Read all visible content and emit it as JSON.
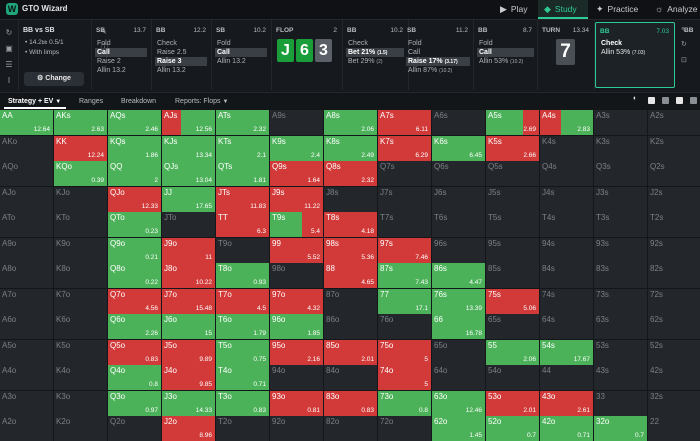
{
  "app": {
    "logo": "W",
    "name": "GTO Wizard",
    "caret": "⌄"
  },
  "nav": [
    {
      "label": "Play",
      "icon": "play-icon",
      "glyph": "▶"
    },
    {
      "label": "Study",
      "icon": "study-icon",
      "glyph": "◆",
      "active": true
    },
    {
      "label": "Practice",
      "icon": "practice-icon",
      "glyph": "✦"
    },
    {
      "label": "Analyze",
      "icon": "analyze-icon",
      "glyph": "☼"
    }
  ],
  "sidebar_icons": [
    {
      "name": "refresh-icon",
      "glyph": "↻"
    },
    {
      "name": "save-icon",
      "glyph": "▣"
    },
    {
      "name": "stack-icon",
      "glyph": "☰"
    },
    {
      "name": "text-cursor-icon",
      "glyph": "I"
    }
  ],
  "context": {
    "title": "BB vs SB",
    "line1": "• 14.2",
    "line1b": "bb",
    "line1c": " 0.5/1",
    "line2": "• With limps",
    "change_label": "Change",
    "change_icon": "⚙",
    "edit_icon": "✎",
    "info_icon": "ⓘ"
  },
  "action_cols": [
    {
      "player": "SB",
      "stack": "13.7",
      "options": [
        "Fold",
        "Call",
        "Raise 2",
        "Allin 13.2"
      ],
      "selected": 1
    },
    {
      "player": "BB",
      "stack": "12.2",
      "options": [
        "Check",
        "Raise 2.5",
        "Raise 3",
        "Allin 13.2"
      ],
      "selected": 2
    },
    {
      "player": "SB",
      "stack": "10.2",
      "options": [
        "Fold",
        "Call",
        "Allin 13.2"
      ],
      "selected": 1
    }
  ],
  "flop": {
    "label": "FLOP",
    "pot": "2",
    "cards": [
      "J",
      "6",
      "3"
    ]
  },
  "street_cols": [
    {
      "player": "BB",
      "stack": "10.2",
      "options": [
        {
          "t": "Check",
          "s": ""
        },
        {
          "t": "Bet 21%",
          "s": "(1.5)"
        },
        {
          "t": "Bet 29%",
          "s": "(2)"
        }
      ],
      "selected": 1
    },
    {
      "player": "SB",
      "stack": "11.2",
      "options": [
        {
          "t": "Fold",
          "s": ""
        },
        {
          "t": "Call",
          "s": ""
        },
        {
          "t": "Raise 17%",
          "s": "(3.17)"
        },
        {
          "t": "Allin 87%",
          "s": "(10.2)"
        }
      ],
      "selected": 2
    },
    {
      "player": "BB",
      "stack": "8.7",
      "options": [
        {
          "t": "Fold",
          "s": ""
        },
        {
          "t": "Call",
          "s": ""
        },
        {
          "t": "Allin 53%",
          "s": "(10.2)"
        }
      ],
      "selected": 1
    }
  ],
  "turn": {
    "label": "TURN",
    "pot": "13.34",
    "card": "7"
  },
  "active_col": {
    "player": "BB",
    "stack": "7.03",
    "options": [
      {
        "t": "Check",
        "s": ""
      },
      {
        "t": "Allin 53%",
        "s": "(7.03)"
      }
    ]
  },
  "far_col": {
    "player": "BB"
  },
  "tabs": {
    "strategy": "Strategy + EV",
    "ranges": "Ranges",
    "breakdown": "Breakdown",
    "reports": "Reports: Flops"
  },
  "grid": {
    "ranks": [
      "A",
      "K",
      "Q",
      "J",
      "T",
      "9",
      "8",
      "7",
      "6",
      "5",
      "4",
      "3",
      "2"
    ],
    "cells": [
      [
        "g:AA:12.64",
        "g:AKs:2.63",
        "g:AQs:2.46",
        "rg35:AJs:12.56",
        "g:ATs:2.32",
        "e:A9s",
        "g:A8s:2.06",
        "r:A7s:6.11",
        "e:A6s",
        "g70:A5s:2.69",
        "r40:A4s:2.83",
        "e:A3s",
        "e:A2s"
      ],
      [
        "e:AKo",
        "r:KK:12.24",
        "g:KQs:1.86",
        "g:KJs:13.34",
        "g:KTs:2.1",
        "g:K9s:2.4",
        "g:K8s:2.49",
        "r:K7s:6.29",
        "g:K6s:6.45",
        "r:K5s:2.66",
        "e:K4s",
        "e:K3s",
        "e:K2s"
      ],
      [
        "e:AQo",
        "g:KQo:0.39",
        "g:QQ:2",
        "g:QJs:13.04",
        "g:QTs:1.81",
        "r:Q9s:1.64",
        "r:Q8s:2.32",
        "e:Q7s",
        "e:Q6s",
        "e:Q5s",
        "e:Q4s",
        "e:Q3s",
        "e:Q2s"
      ],
      [
        "e:AJo",
        "e:KJo",
        "r:QJo:12.33",
        "g:JJ:17.65",
        "r:JTs:11.83",
        "r:J9s:11.22",
        "e:J8s",
        "e:J7s",
        "e:J6s",
        "e:J5s",
        "e:J4s",
        "e:J3s",
        "e:J2s"
      ],
      [
        "e:ATo",
        "e:KTo",
        "g:QTo:0.23",
        "e:JTo",
        "r:TT:6.3",
        "gr60:T9s:5.4",
        "r:T8s:4.18",
        "e:T7s",
        "e:T6s",
        "e:T5s",
        "e:T4s",
        "e:T3s",
        "e:T2s"
      ],
      [
        "e:A9o",
        "e:K9o",
        "g:Q9o:0.21",
        "r:J9o:11",
        "e:T9o",
        "r:99:5.52",
        "r:98s:5.36",
        "r:97s:7.46",
        "e:96s",
        "e:95s",
        "e:94s",
        "e:93s",
        "e:92s"
      ],
      [
        "e:A8o",
        "e:K8o",
        "g:Q8o:0.22",
        "r:J8o:10.22",
        "g:T8o:0.93",
        "e:98o",
        "r:88:4.65",
        "g:87s:7.43",
        "g:86s:4.47",
        "e:85s",
        "e:84s",
        "e:83s",
        "e:82s"
      ],
      [
        "e:A7o",
        "e:K7o",
        "r:Q7o:4.56",
        "r:J7o:15.48",
        "r:T7o:4.5",
        "r:97o:4.32",
        "e:87o",
        "g:77:17.1",
        "g:76s:13.39",
        "r:75s:5.06",
        "e:74s",
        "e:73s",
        "e:72s"
      ],
      [
        "e:A6o",
        "e:K6o",
        "g:Q6o:2.26",
        "g:J6o:15",
        "g:T6o:1.79",
        "g:96o:1.85",
        "e:86o",
        "e:76o",
        "g:66:16.78",
        "e:65s",
        "e:64s",
        "e:63s",
        "e:62s"
      ],
      [
        "e:A5o",
        "e:K5o",
        "r:Q5o:0.83",
        "r:J5o:9.89",
        "g:T5o:0.75",
        "r:95o:2.16",
        "r:85o:2.01",
        "r:75o:5",
        "e:65o",
        "g:55:2.06",
        "g:54s:17.67",
        "e:53s",
        "e:52s"
      ],
      [
        "e:A4o",
        "e:K4o",
        "g:Q4o:0.8",
        "r:J4o:9.85",
        "g:T4o:0.71",
        "e:94o",
        "e:84o",
        "r:74o:5",
        "e:64o",
        "e:54o",
        "e:44",
        "e:43s",
        "e:42s"
      ],
      [
        "e:A3o",
        "e:K3o",
        "g:Q3o:0.97",
        "g:J3o:14.33",
        "g:T3o:0.83",
        "r:93o:0.81",
        "r:83o:0.83",
        "g:73o:0.8",
        "g:63o:12.46",
        "r:53o:2.01",
        "r:43o:2.61",
        "e:33",
        "e:32s"
      ],
      [
        "e:A2o",
        "e:K2o",
        "e:Q2o",
        "r:J2o:8.96",
        "e:T2o",
        "e:92o",
        "e:82o",
        "e:72o",
        "g:62o:1.45",
        "g:52o:0.7",
        "g:42o:0.71",
        "g:32o:0.7",
        "e:22"
      ]
    ]
  },
  "colors": {
    "accent": "#2ecc95",
    "green": "#4cb25a",
    "red": "#d23a39",
    "card_green": "#1a9e3a"
  }
}
